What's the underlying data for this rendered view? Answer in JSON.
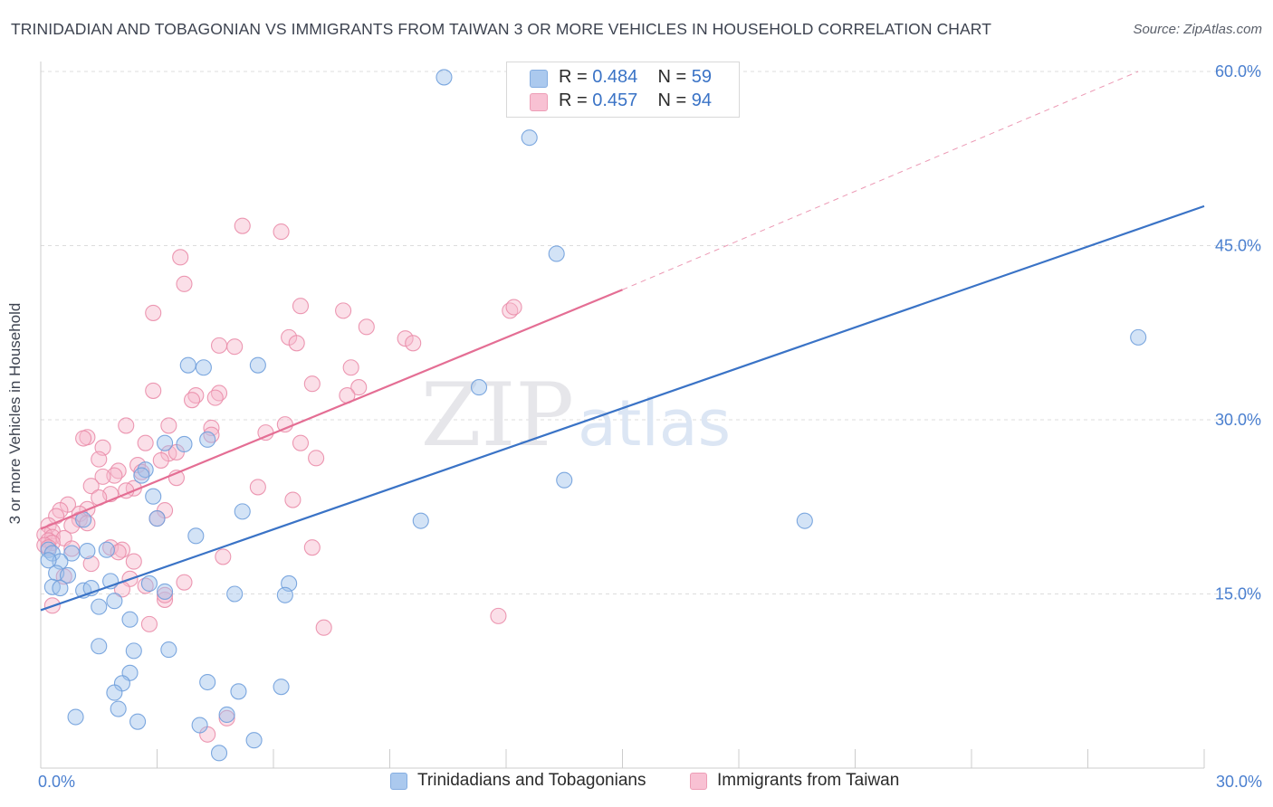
{
  "title": "TRINIDADIAN AND TOBAGONIAN VS IMMIGRANTS FROM TAIWAN 3 OR MORE VEHICLES IN HOUSEHOLD CORRELATION CHART",
  "source": "Source: ZipAtlas.com",
  "watermark": {
    "zip": "ZIP",
    "atlas": "atlas"
  },
  "legend": {
    "rows": [
      {
        "r_label": "R = ",
        "r_value": "0.484",
        "n_label": "N = ",
        "n_value": "59"
      },
      {
        "r_label": "R = ",
        "r_value": "0.457",
        "n_label": "N = ",
        "n_value": "94"
      }
    ]
  },
  "chart_data": {
    "type": "scatter",
    "title": "TRINIDADIAN AND TOBAGONIAN VS IMMIGRANTS FROM TAIWAN 3 OR MORE VEHICLES IN HOUSEHOLD CORRELATION CHART",
    "xlabel": "",
    "ylabel": "3 or more Vehicles in Household",
    "xlim": [
      0,
      30
    ],
    "ylim": [
      0,
      60
    ],
    "x_tick_labels": [
      {
        "value": 0,
        "label": "0.0%"
      },
      {
        "value": 30,
        "label": "30.0%"
      }
    ],
    "y_tick_labels": [
      {
        "value": 15,
        "label": "15.0%"
      },
      {
        "value": 30,
        "label": "30.0%"
      },
      {
        "value": 45,
        "label": "45.0%"
      },
      {
        "value": 60,
        "label": "60.0%"
      }
    ],
    "x_minor_ticks": [
      0,
      3,
      6,
      9,
      12,
      15,
      18,
      21,
      24,
      27,
      30
    ],
    "grid": true,
    "legend_position": "bottom",
    "series": [
      {
        "name": "Trinidadians and Tobagonians",
        "color": "#9dc0ec",
        "edge": "#6f9fdc",
        "line_color": "#3a73c6",
        "r": 0.484,
        "n": 59,
        "trend": {
          "x0": 0,
          "y0": 13.6,
          "x1": 30,
          "y1": 48.4,
          "dashed_to": null
        },
        "points": [
          [
            10.4,
            59.5
          ],
          [
            12.6,
            54.3
          ],
          [
            13.3,
            44.3
          ],
          [
            28.3,
            37.1
          ],
          [
            5.6,
            34.7
          ],
          [
            3.8,
            34.7
          ],
          [
            4.2,
            34.5
          ],
          [
            11.3,
            32.8
          ],
          [
            3.2,
            28.0
          ],
          [
            3.7,
            27.9
          ],
          [
            4.3,
            28.3
          ],
          [
            2.7,
            25.7
          ],
          [
            2.6,
            25.2
          ],
          [
            13.5,
            24.8
          ],
          [
            2.9,
            23.4
          ],
          [
            5.2,
            22.1
          ],
          [
            3.0,
            21.5
          ],
          [
            1.1,
            21.4
          ],
          [
            9.8,
            21.3
          ],
          [
            19.7,
            21.3
          ],
          [
            4.0,
            20.0
          ],
          [
            0.2,
            18.8
          ],
          [
            0.3,
            18.5
          ],
          [
            0.8,
            18.5
          ],
          [
            1.2,
            18.7
          ],
          [
            1.7,
            18.8
          ],
          [
            0.5,
            17.8
          ],
          [
            0.2,
            17.9
          ],
          [
            0.4,
            16.8
          ],
          [
            0.7,
            16.6
          ],
          [
            1.8,
            16.1
          ],
          [
            2.8,
            15.9
          ],
          [
            6.4,
            15.9
          ],
          [
            0.3,
            15.6
          ],
          [
            0.5,
            15.5
          ],
          [
            1.1,
            15.3
          ],
          [
            1.3,
            15.5
          ],
          [
            3.2,
            15.2
          ],
          [
            5.0,
            15.0
          ],
          [
            6.3,
            14.9
          ],
          [
            1.9,
            14.4
          ],
          [
            1.5,
            13.9
          ],
          [
            2.3,
            12.8
          ],
          [
            1.5,
            10.5
          ],
          [
            2.4,
            10.1
          ],
          [
            3.3,
            10.2
          ],
          [
            2.3,
            8.2
          ],
          [
            4.3,
            7.4
          ],
          [
            2.1,
            7.3
          ],
          [
            5.1,
            6.6
          ],
          [
            1.9,
            6.5
          ],
          [
            6.2,
            7.0
          ],
          [
            2.0,
            5.1
          ],
          [
            0.9,
            4.4
          ],
          [
            2.5,
            4.0
          ],
          [
            4.1,
            3.7
          ],
          [
            4.8,
            4.6
          ],
          [
            4.6,
            1.3
          ],
          [
            5.5,
            2.4
          ]
        ]
      },
      {
        "name": "Immigrants from Taiwan",
        "color": "#f7b7cc",
        "edge": "#ea8daa",
        "line_color": "#e46e94",
        "r": 0.457,
        "n": 94,
        "trend": {
          "x0": 0,
          "y0": 20.6,
          "x1": 15,
          "y1": 41.2,
          "dashed_to": {
            "x": 28.3,
            "y": 60.0
          }
        },
        "points": [
          [
            5.2,
            46.7
          ],
          [
            6.2,
            46.2
          ],
          [
            3.6,
            44.0
          ],
          [
            3.7,
            41.7
          ],
          [
            2.9,
            39.2
          ],
          [
            6.7,
            39.8
          ],
          [
            7.8,
            39.4
          ],
          [
            12.1,
            39.4
          ],
          [
            12.2,
            39.7
          ],
          [
            8.4,
            38.0
          ],
          [
            9.4,
            37.0
          ],
          [
            9.6,
            36.6
          ],
          [
            6.4,
            37.1
          ],
          [
            6.6,
            36.6
          ],
          [
            4.6,
            36.4
          ],
          [
            5.0,
            36.3
          ],
          [
            8.0,
            34.5
          ],
          [
            7.0,
            33.1
          ],
          [
            8.2,
            32.8
          ],
          [
            2.9,
            32.5
          ],
          [
            4.0,
            32.1
          ],
          [
            4.6,
            32.3
          ],
          [
            7.9,
            32.1
          ],
          [
            4.5,
            31.9
          ],
          [
            3.9,
            31.7
          ],
          [
            3.3,
            29.5
          ],
          [
            2.2,
            29.5
          ],
          [
            4.4,
            29.3
          ],
          [
            6.3,
            29.6
          ],
          [
            5.8,
            28.9
          ],
          [
            4.4,
            28.7
          ],
          [
            1.2,
            28.5
          ],
          [
            1.1,
            28.4
          ],
          [
            3.3,
            27.1
          ],
          [
            2.7,
            28.0
          ],
          [
            6.7,
            28.0
          ],
          [
            1.6,
            27.6
          ],
          [
            3.5,
            27.2
          ],
          [
            7.1,
            26.7
          ],
          [
            1.5,
            26.6
          ],
          [
            3.1,
            26.5
          ],
          [
            2.5,
            26.1
          ],
          [
            2.6,
            25.5
          ],
          [
            2.0,
            25.6
          ],
          [
            1.9,
            25.2
          ],
          [
            1.6,
            25.1
          ],
          [
            3.5,
            25.0
          ],
          [
            1.3,
            24.3
          ],
          [
            5.6,
            24.2
          ],
          [
            2.4,
            24.1
          ],
          [
            2.2,
            23.9
          ],
          [
            1.8,
            23.6
          ],
          [
            6.5,
            23.1
          ],
          [
            1.5,
            23.3
          ],
          [
            0.7,
            22.7
          ],
          [
            1.2,
            22.3
          ],
          [
            0.5,
            22.2
          ],
          [
            3.2,
            22.2
          ],
          [
            1.0,
            21.9
          ],
          [
            0.4,
            21.7
          ],
          [
            1.0,
            21.4
          ],
          [
            3.0,
            21.5
          ],
          [
            1.2,
            21.1
          ],
          [
            0.2,
            20.9
          ],
          [
            0.8,
            20.9
          ],
          [
            0.3,
            20.4
          ],
          [
            0.1,
            20.1
          ],
          [
            0.3,
            19.9
          ],
          [
            0.6,
            19.8
          ],
          [
            0.2,
            19.6
          ],
          [
            0.3,
            19.4
          ],
          [
            0.1,
            19.2
          ],
          [
            0.2,
            19.0
          ],
          [
            0.8,
            18.9
          ],
          [
            1.8,
            19.0
          ],
          [
            2.1,
            18.8
          ],
          [
            2.0,
            18.6
          ],
          [
            7.0,
            19.0
          ],
          [
            4.7,
            18.2
          ],
          [
            1.3,
            17.6
          ],
          [
            2.4,
            17.8
          ],
          [
            2.3,
            16.3
          ],
          [
            3.7,
            16.0
          ],
          [
            0.6,
            16.5
          ],
          [
            2.7,
            15.7
          ],
          [
            2.1,
            15.4
          ],
          [
            3.2,
            14.5
          ],
          [
            3.2,
            14.9
          ],
          [
            0.3,
            14.0
          ],
          [
            11.8,
            13.1
          ],
          [
            2.8,
            12.4
          ],
          [
            7.3,
            12.1
          ],
          [
            4.8,
            4.3
          ],
          [
            4.3,
            2.9
          ]
        ]
      }
    ]
  }
}
